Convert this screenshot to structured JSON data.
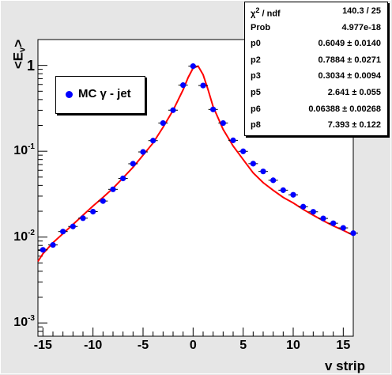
{
  "chart_data": {
    "type": "scatter",
    "xlabel": "v strip",
    "ylabel": "<E_v>",
    "xlim": [
      -15.5,
      16
    ],
    "ylim": [
      0.0007,
      2
    ],
    "yscale": "log",
    "grid": false,
    "legend_position": "upper-left",
    "xticks": [
      "-15",
      "-10",
      "-5",
      "0",
      "5",
      "10",
      "15"
    ],
    "yticks": [
      {
        "base": "10",
        "exp": "-3",
        "value": 0.001
      },
      {
        "base": "10",
        "exp": "-2",
        "value": 0.01
      },
      {
        "base": "10",
        "exp": "-1",
        "value": 0.1
      },
      {
        "base": "1",
        "exp": "",
        "value": 1
      }
    ],
    "series": [
      {
        "name": "MC γ - jet",
        "style": "markers",
        "x": [
          -15,
          -14,
          -13,
          -12,
          -11,
          -10,
          -9,
          -8,
          -7,
          -6,
          -5,
          -4,
          -3,
          -2,
          -1,
          0,
          1,
          2,
          3,
          4,
          5,
          6,
          7,
          8,
          9,
          10,
          11,
          12,
          13,
          14,
          15,
          16
        ],
        "y": [
          0.0071,
          0.0081,
          0.0116,
          0.0133,
          0.0166,
          0.0198,
          0.0263,
          0.036,
          0.0483,
          0.0715,
          0.0982,
          0.133,
          0.213,
          0.301,
          0.589,
          0.98,
          0.583,
          0.307,
          0.213,
          0.134,
          0.0998,
          0.0717,
          0.0582,
          0.0459,
          0.0352,
          0.0311,
          0.0226,
          0.0197,
          0.0165,
          0.0145,
          0.0128,
          0.0111
        ]
      },
      {
        "name": "fit",
        "style": "line",
        "x": [
          -15.5,
          -15,
          -14,
          -13,
          -12,
          -11,
          -10,
          -9,
          -8,
          -7,
          -6,
          -5,
          -4,
          -3,
          -2,
          -1,
          -0.5,
          0,
          0.5,
          1,
          1.5,
          2,
          3,
          4,
          5,
          6,
          7,
          8,
          9,
          10,
          11,
          12,
          13,
          14,
          15,
          16
        ],
        "y": [
          0.0052,
          0.0064,
          0.0086,
          0.011,
          0.014,
          0.018,
          0.023,
          0.029,
          0.037,
          0.049,
          0.065,
          0.09,
          0.125,
          0.19,
          0.3,
          0.52,
          0.72,
          0.93,
          0.98,
          0.78,
          0.52,
          0.33,
          0.18,
          0.115,
          0.08,
          0.056,
          0.043,
          0.035,
          0.029,
          0.025,
          0.021,
          0.018,
          0.0155,
          0.0135,
          0.012,
          0.0105
        ]
      }
    ]
  },
  "stats_box": {
    "rows": [
      {
        "name_html": "χ<sup>2</sup> / ndf",
        "name": "χ2 / ndf",
        "value": "140.3 / 25"
      },
      {
        "name": "Prob",
        "value": "4.977e-18"
      },
      {
        "name": "p0",
        "value": "0.6049 ± 0.0140"
      },
      {
        "name": "p2",
        "value": "0.7884 ± 0.0271"
      },
      {
        "name": "p3",
        "value": "0.3034 ± 0.0094"
      },
      {
        "name": "p5",
        "value": "2.641 ± 0.055"
      },
      {
        "name": "p6",
        "value": "0.06388 ± 0.00268"
      },
      {
        "name": "p8",
        "value": "7.393 ± 0.122"
      }
    ]
  },
  "legend": {
    "label": "MC γ - jet"
  },
  "colors": {
    "marker": "#0000ff",
    "fit_line": "#ff0000",
    "frame_background": "#e6e6e6",
    "plot_background": "#ffffff"
  }
}
